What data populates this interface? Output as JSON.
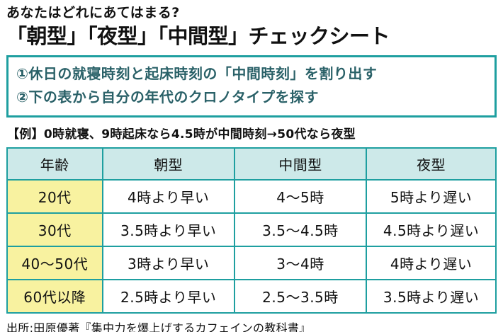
{
  "header": {
    "subtitle": "あなたはどれにあてはまる?",
    "title": "「朝型」「夜型」「中間型」チェックシート"
  },
  "instructions": {
    "step1": "①休日の就寝時刻と起床時刻の「中間時刻」を割り出す",
    "step2": "②下の表から自分の年代のクロノタイプを探す"
  },
  "example": "【例】0時就寝、9時起床なら4.5時が中間時刻→50代なら夜型",
  "chart_data": {
    "type": "table",
    "title": "「朝型」「夜型」「中間型」チェックシート",
    "columns": [
      "年齢",
      "朝型",
      "中間型",
      "夜型"
    ],
    "rows": [
      [
        "20代",
        "4時より早い",
        "4〜5時",
        "5時より遅い"
      ],
      [
        "30代",
        "3.5時より早い",
        "3.5〜4.5時",
        "4.5時より遅い"
      ],
      [
        "40〜50代",
        "3時より早い",
        "3〜4時",
        "4時より遅い"
      ],
      [
        "60代以降",
        "2.5時より早い",
        "2.5〜3.5時",
        "3.5時より遅い"
      ]
    ]
  },
  "source": "出所:田原優著『集中力を爆上げするカフェインの教科書』",
  "colors": {
    "accent_teal": "#1e9fa0",
    "header_row_bg": "#cde9e9",
    "age_column_bg": "#f8f2a0",
    "instruction_text": "#2a6168",
    "text": "#111111",
    "background": "#ffffff"
  }
}
